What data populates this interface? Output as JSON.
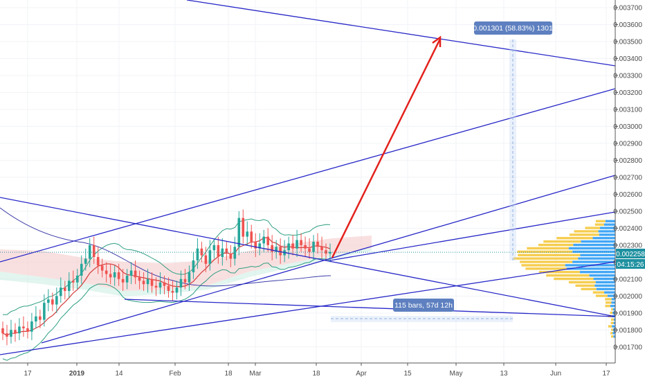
{
  "chart_data": {
    "type": "candlestick",
    "title": "",
    "xlabel": "",
    "ylabel": "",
    "ylim": [
      0.00166,
      0.00377
    ],
    "y_ticks": [
      "0.003700",
      "0.003600",
      "0.003500",
      "0.003400",
      "0.003300",
      "0.003200",
      "0.003100",
      "0.003000",
      "0.002900",
      "0.002800",
      "0.002700",
      "0.002600",
      "0.002500",
      "0.002400",
      "0.002300",
      "0.002200",
      "0.002100",
      "0.002000",
      "0.001900",
      "0.001800",
      "0.001700"
    ],
    "x_ticks": [
      {
        "label": "17",
        "bold": false
      },
      {
        "label": "2019",
        "bold": true
      },
      {
        "label": "14",
        "bold": false
      },
      {
        "label": "Feb",
        "bold": false
      },
      {
        "label": "18",
        "bold": false
      },
      {
        "label": "Mar",
        "bold": false
      },
      {
        "label": "18",
        "bold": false
      },
      {
        "label": "Apr",
        "bold": false
      },
      {
        "label": "15",
        "bold": false
      },
      {
        "label": "May",
        "bold": false
      },
      {
        "label": "13",
        "bold": false
      },
      {
        "label": "Jun",
        "bold": false
      },
      {
        "label": "17",
        "bold": false
      }
    ],
    "last_price": "0.002258",
    "countdown": "04:15:26",
    "grid": true,
    "colors": {
      "up": "#26a69a",
      "down": "#ef5350",
      "trendline": "#2828c8",
      "projection": "#e3211c",
      "badge": "#1e90a0",
      "annotation": "#5e80c0",
      "volume_up": "#2196f3",
      "volume_down": "#f5c430"
    },
    "annotations": {
      "price_range": "0.001301 (58.83%) 1301",
      "date_range": "115 bars, 57d 12h"
    },
    "close_series": [
      0.00178,
      0.00176,
      0.0018,
      0.00178,
      0.00182,
      0.00181,
      0.00179,
      0.00185,
      0.00188,
      0.00186,
      0.00196,
      0.00198,
      0.00195,
      0.002,
      0.00205,
      0.00203,
      0.00209,
      0.00208,
      0.00212,
      0.00219,
      0.00222,
      0.0023,
      0.00223,
      0.00218,
      0.00215,
      0.00213,
      0.00211,
      0.00214,
      0.0021,
      0.00208,
      0.00212,
      0.00215,
      0.00211,
      0.00209,
      0.00207,
      0.0021,
      0.00206,
      0.00205,
      0.00208,
      0.00206,
      0.00203,
      0.00202,
      0.00205,
      0.0021,
      0.00208,
      0.00214,
      0.00221,
      0.00228,
      0.00224,
      0.00219,
      0.00227,
      0.0023,
      0.00223,
      0.00228,
      0.00225,
      0.00222,
      0.00229,
      0.00246,
      0.00235,
      0.00238,
      0.00232,
      0.00228,
      0.00231,
      0.00235,
      0.0023,
      0.00226,
      0.00229,
      0.00224,
      0.00227,
      0.00231,
      0.00228,
      0.00233,
      0.0023,
      0.00228,
      0.00226,
      0.00232,
      0.00229,
      0.00227,
      0.00225,
      0.00226
    ]
  }
}
